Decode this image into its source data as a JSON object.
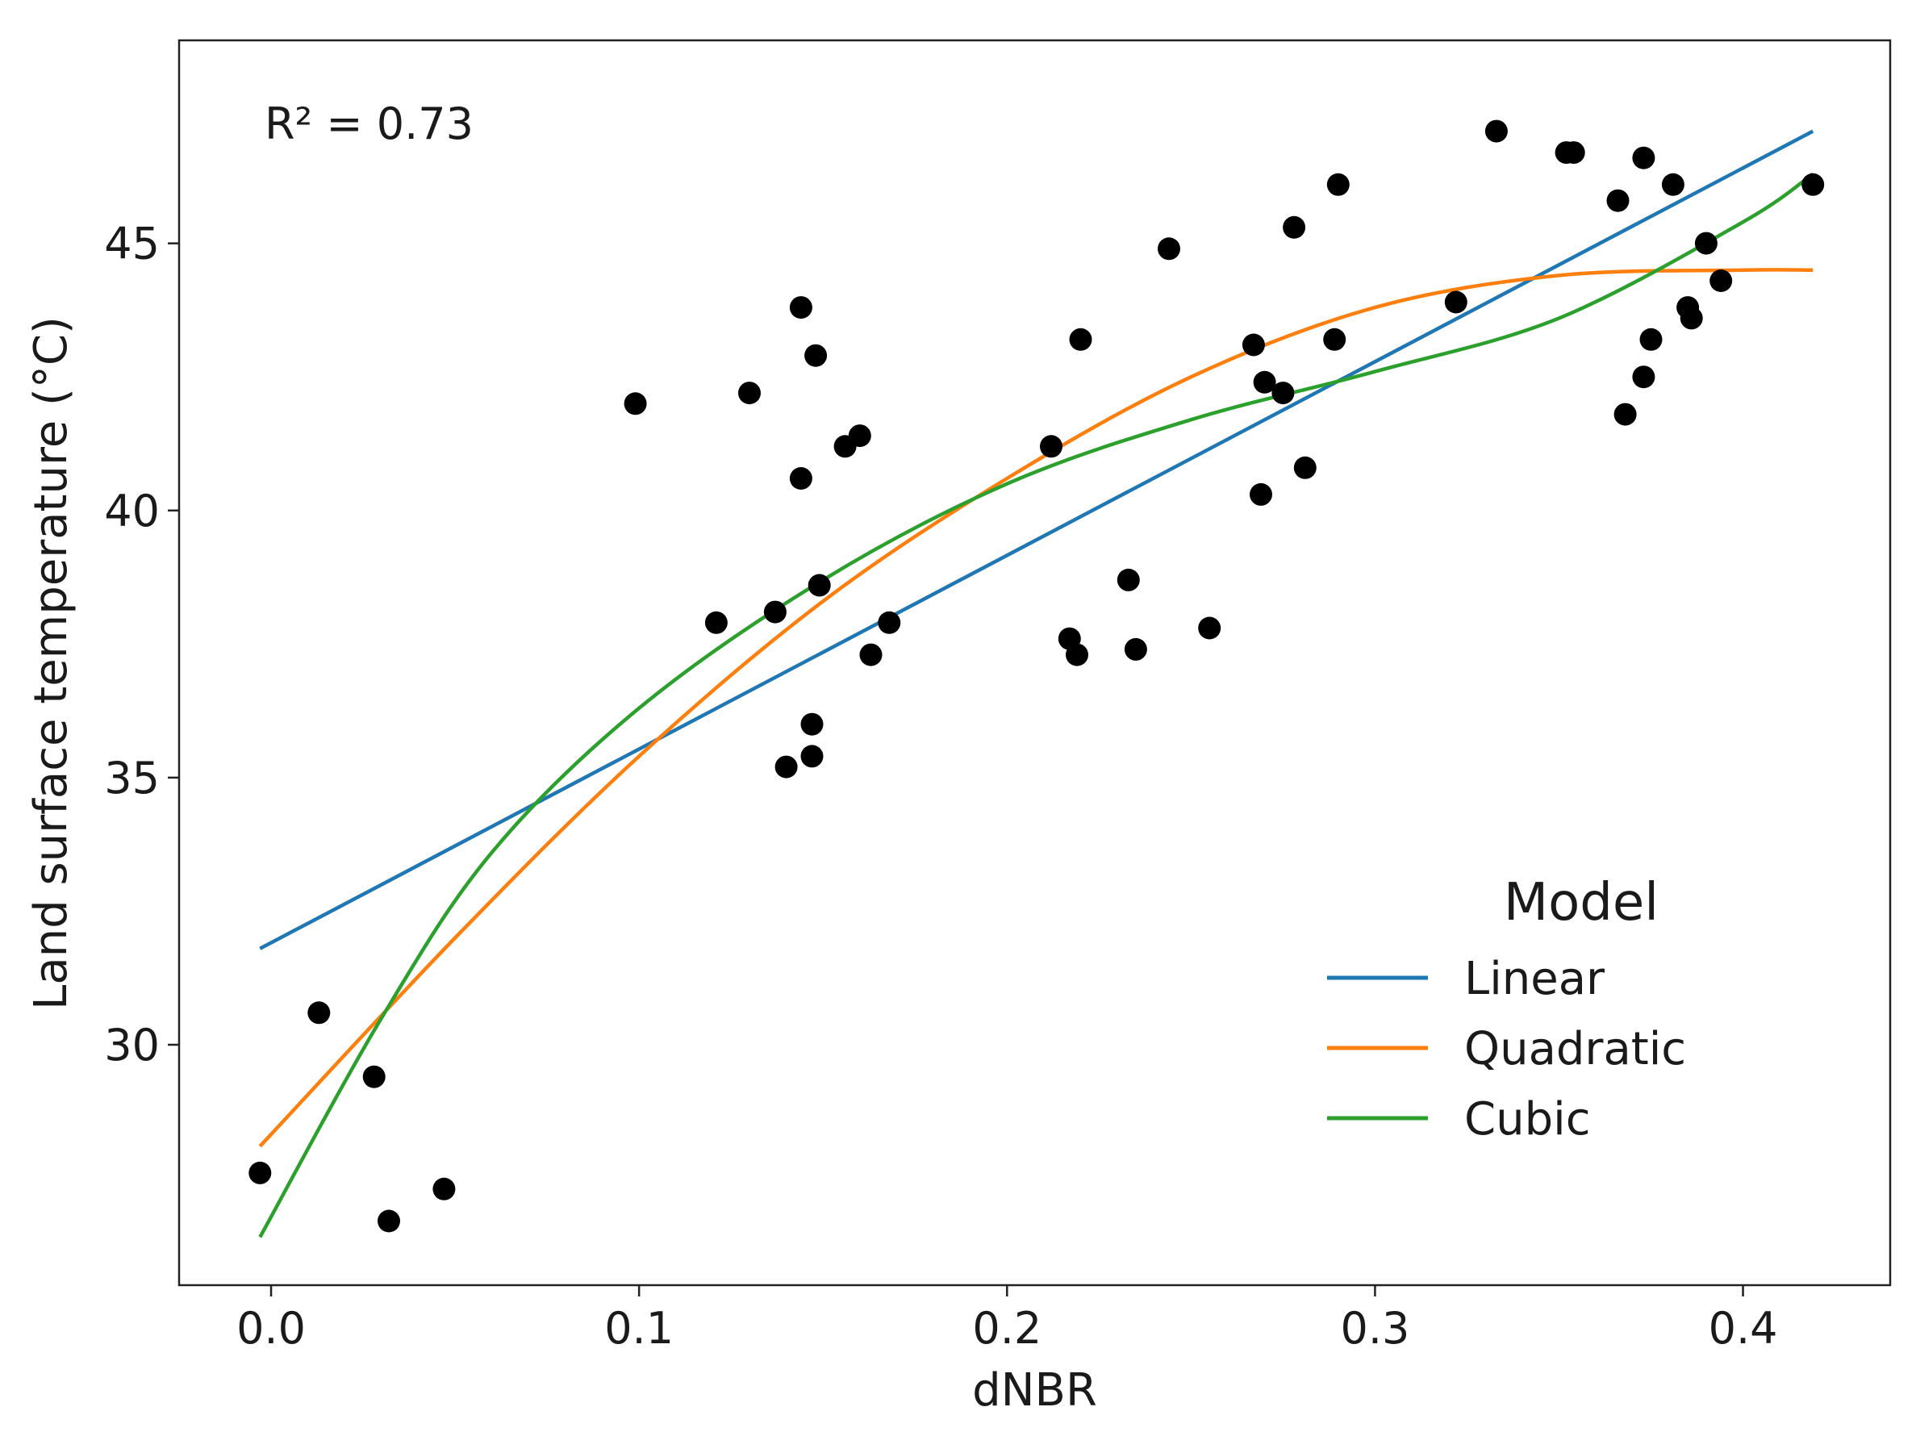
{
  "chart_data": {
    "type": "scatter",
    "xlabel": "dNBR",
    "ylabel": "Land surface temperature (°C)",
    "xlim": [
      -0.025,
      0.44
    ],
    "ylim": [
      25.5,
      48.8
    ],
    "xticks": [
      0.0,
      0.1,
      0.2,
      0.3,
      0.4
    ],
    "xtick_labels": [
      "0.0",
      "0.1",
      "0.2",
      "0.3",
      "0.4"
    ],
    "yticks": [
      30,
      35,
      40,
      45
    ],
    "ytick_labels": [
      "30",
      "35",
      "40",
      "45"
    ],
    "annotation": "R² = 0.73",
    "grid": false,
    "legend": {
      "title": "Model",
      "position": "lower-right",
      "entries": [
        {
          "label": "Linear",
          "color": "#1f77b4"
        },
        {
          "label": "Quadratic",
          "color": "#ff7f0e"
        },
        {
          "label": "Cubic",
          "color": "#2ca02c"
        }
      ]
    },
    "points": {
      "color": "#000000",
      "x": [
        -0.003,
        0.013,
        0.028,
        0.032,
        0.047,
        0.099,
        0.121,
        0.13,
        0.137,
        0.14,
        0.144,
        0.144,
        0.147,
        0.147,
        0.148,
        0.149,
        0.156,
        0.16,
        0.163,
        0.168,
        0.212,
        0.217,
        0.219,
        0.22,
        0.233,
        0.235,
        0.244,
        0.255,
        0.267,
        0.269,
        0.27,
        0.275,
        0.278,
        0.281,
        0.289,
        0.29,
        0.322,
        0.333,
        0.352,
        0.354,
        0.366,
        0.368,
        0.373,
        0.373,
        0.375,
        0.381,
        0.385,
        0.386,
        0.39,
        0.394,
        0.419
      ],
      "y": [
        27.6,
        30.6,
        29.4,
        26.7,
        27.3,
        42.0,
        37.9,
        42.2,
        38.1,
        35.2,
        43.8,
        40.6,
        36.0,
        35.4,
        42.9,
        38.6,
        41.2,
        41.4,
        37.3,
        37.9,
        41.2,
        37.6,
        37.3,
        43.2,
        38.7,
        37.4,
        44.9,
        37.8,
        43.1,
        40.3,
        42.4,
        42.2,
        45.3,
        40.8,
        43.2,
        46.1,
        43.9,
        47.1,
        46.7,
        46.7,
        45.8,
        41.8,
        42.5,
        46.6,
        43.2,
        46.1,
        43.8,
        43.6,
        45.0,
        44.3,
        46.1
      ],
      "x_fix_note": "",
      "y_fix_note": ""
    },
    "series": [
      {
        "name": "Linear",
        "color": "#1f77b4",
        "x": [
          -0.003,
          0.419
        ],
        "y": [
          31.8,
          47.1
        ]
      },
      {
        "name": "Quadratic",
        "color": "#ff7f0e",
        "x": [
          -0.003,
          0.05,
          0.1,
          0.15,
          0.2,
          0.25,
          0.3,
          0.35,
          0.4,
          0.419
        ],
        "y": [
          28.1,
          32.0,
          35.4,
          38.3,
          40.6,
          42.5,
          43.8,
          44.4,
          44.5,
          44.5
        ]
      },
      {
        "name": "Cubic",
        "color": "#2ca02c",
        "x": [
          -0.003,
          0.03,
          0.06,
          0.1,
          0.15,
          0.2,
          0.25,
          0.3,
          0.35,
          0.4,
          0.419
        ],
        "y": [
          26.4,
          30.5,
          33.6,
          36.3,
          38.7,
          40.5,
          41.7,
          42.6,
          43.6,
          45.4,
          46.3
        ]
      }
    ]
  }
}
